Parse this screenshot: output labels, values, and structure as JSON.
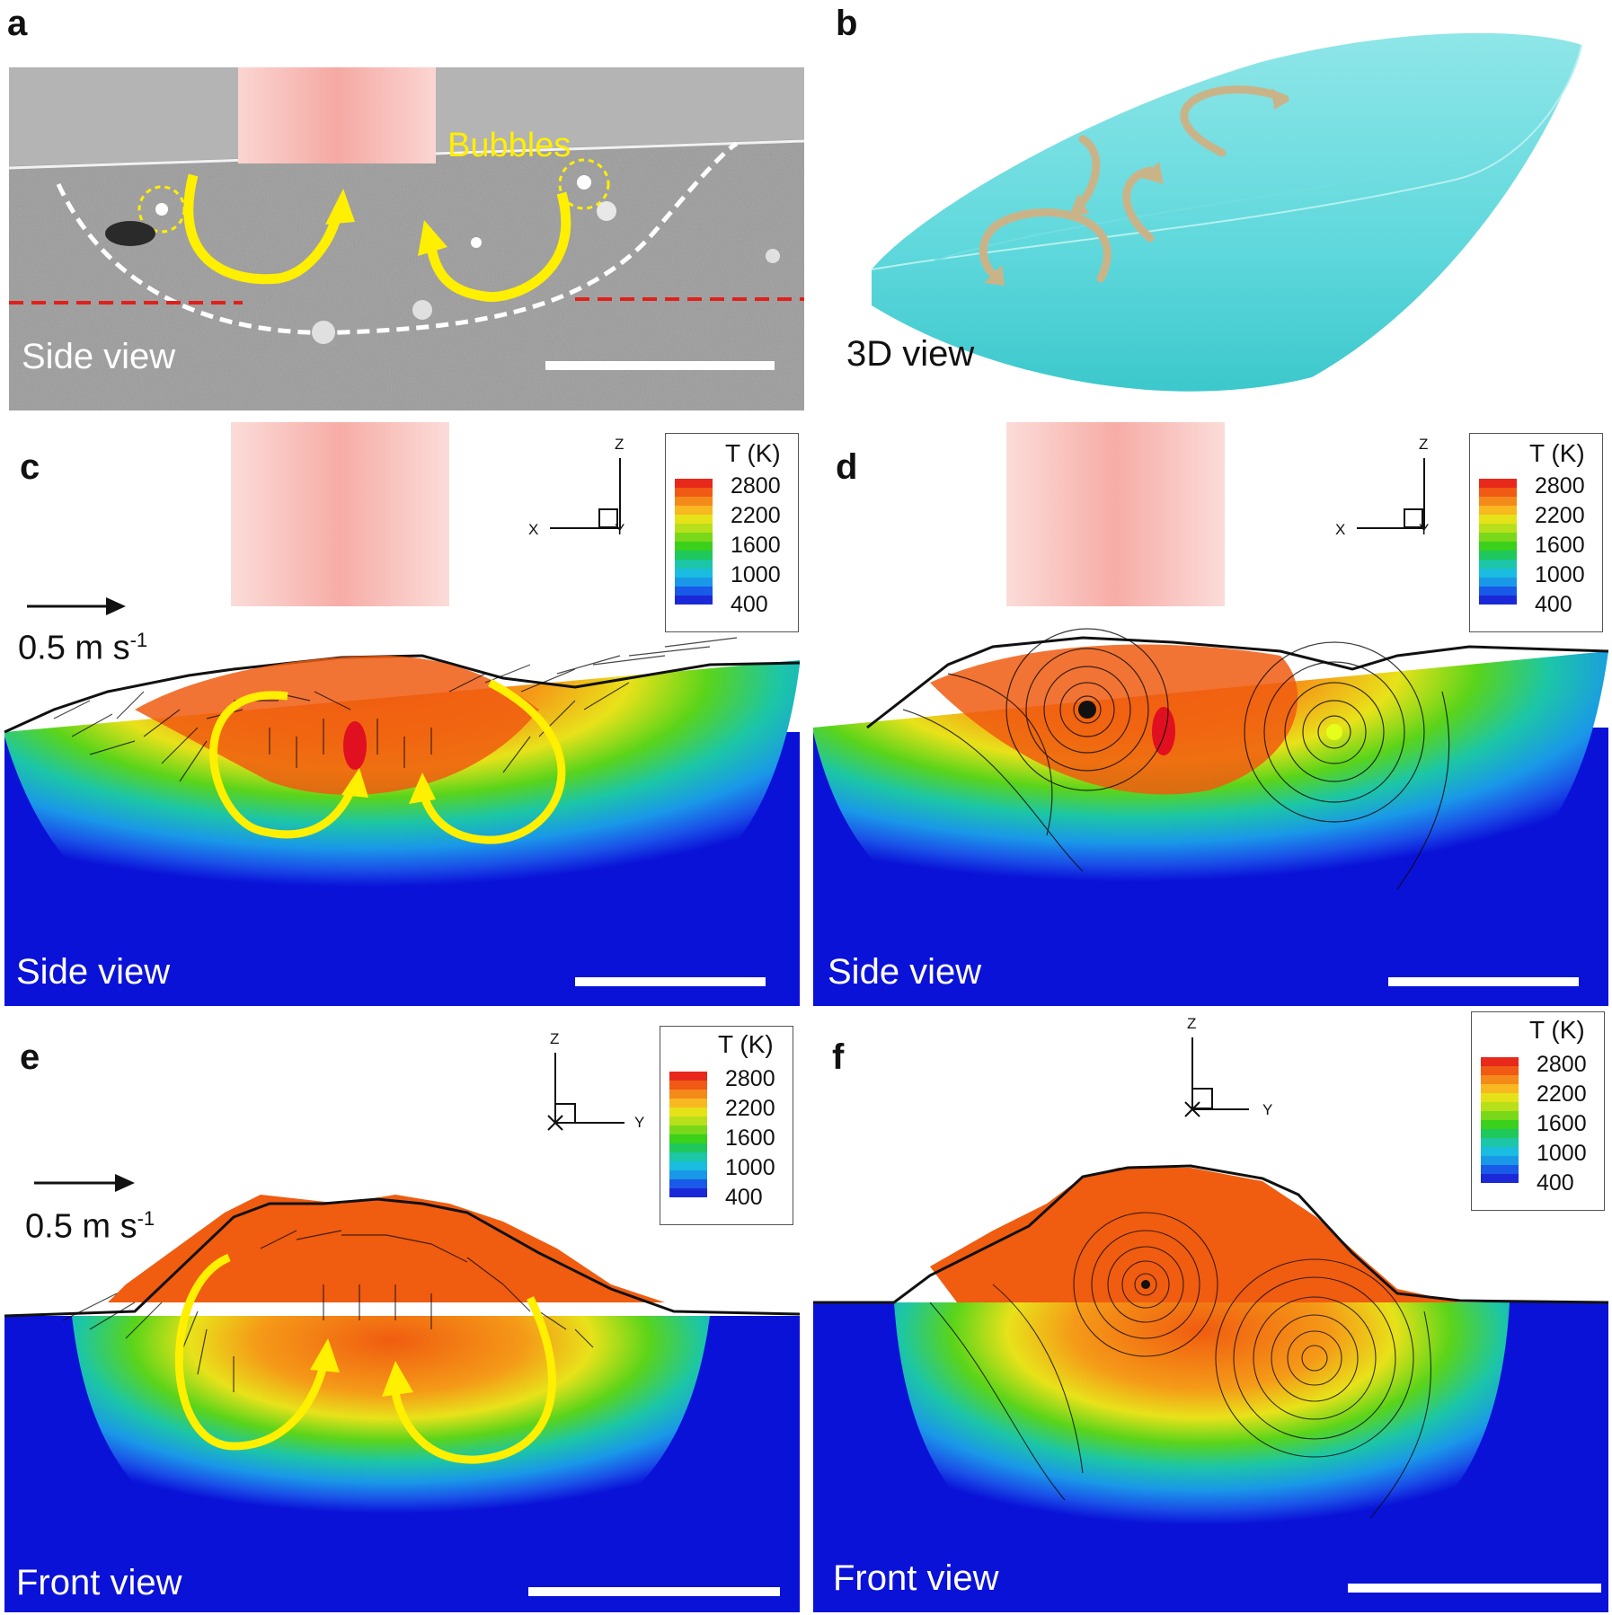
{
  "panels": {
    "a": {
      "label": "a",
      "caption": "Side view",
      "annotation": "Bubbles"
    },
    "b": {
      "label": "b",
      "caption": "3D view"
    },
    "c": {
      "label": "c",
      "caption": "Side view",
      "velocity_label": "0.5 m s",
      "velocity_exp": "-1",
      "axes": {
        "vertical": "Z",
        "horizontal": "X",
        "depth": "Y"
      }
    },
    "d": {
      "label": "d",
      "caption": "Side view",
      "axes": {
        "vertical": "Z",
        "horizontal": "X",
        "depth": "Y"
      }
    },
    "e": {
      "label": "e",
      "caption": "Front view",
      "velocity_label": "0.5 m s",
      "velocity_exp": "-1",
      "axes": {
        "vertical": "Z",
        "horizontal": "Y",
        "depth": "X"
      }
    },
    "f": {
      "label": "f",
      "caption": "Front view",
      "axes": {
        "vertical": "Z",
        "horizontal": "Y",
        "depth": "X"
      }
    }
  },
  "legend": {
    "title": "T (K)",
    "ticks": [
      "2800",
      "2200",
      "1600",
      "1000",
      "400"
    ],
    "colors": [
      "#e8281b",
      "#f05a14",
      "#f48a1a",
      "#f8b820",
      "#e6e21a",
      "#b8e01a",
      "#7ad81a",
      "#3ad01c",
      "#1ec85c",
      "#1cc6a6",
      "#1abce0",
      "#1a98e8",
      "#1a5ae8",
      "#1a28d8"
    ]
  },
  "colors": {
    "highlight": "#ffef00",
    "dashed_boundary": "#ffffff",
    "reference_line": "#e0201a",
    "substrate": "#0a12d8",
    "melt_top": "#f05c10",
    "laser": "#f9b6b2",
    "pool_3d": "#5fd8dc"
  }
}
